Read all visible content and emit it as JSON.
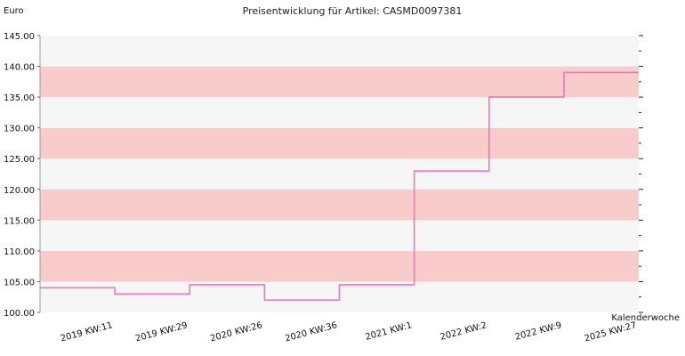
{
  "chart_data": {
    "type": "line",
    "step": true,
    "title": "Preisentwicklung für Artikel: CASMD0097381",
    "ylabel": "Euro",
    "xlabel": "Kalenderwoche",
    "ylim": [
      100,
      145
    ],
    "yticks": [
      "100.00",
      "105.00",
      "110.00",
      "115.00",
      "120.00",
      "125.00",
      "130.00",
      "135.00",
      "140.00",
      "145.00"
    ],
    "categories": [
      "2019 KW:11",
      "2019 KW:29",
      "2020 KW:26",
      "2020 KW:36",
      "2021 KW:1",
      "2022 KW:2",
      "2022 KW:9",
      "2025 KW:27"
    ],
    "series": [
      {
        "values": [
          104,
          103,
          104.5,
          102,
          104.5,
          123,
          135,
          139
        ]
      }
    ],
    "band_colors": [
      "#f6f6f6",
      "#f9cccc"
    ],
    "line_color": "#ee77bb",
    "grid": false,
    "legend": "none"
  }
}
